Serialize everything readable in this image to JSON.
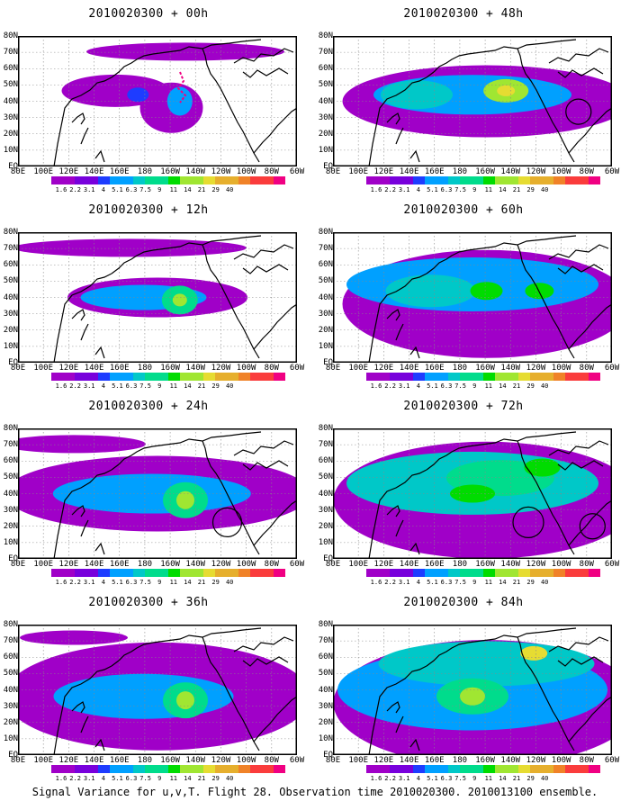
{
  "panels": [
    {
      "title": "2010020300 + 00h"
    },
    {
      "title": "2010020300 + 48h"
    },
    {
      "title": "2010020300 + 12h"
    },
    {
      "title": "2010020300 + 60h"
    },
    {
      "title": "2010020300 + 24h"
    },
    {
      "title": "2010020300 + 72h"
    },
    {
      "title": "2010020300 + 36h"
    },
    {
      "title": "2010020300 + 84h"
    }
  ],
  "lat_labels": [
    "80N",
    "70N",
    "60N",
    "50N",
    "40N",
    "30N",
    "20N",
    "10N",
    "EQ"
  ],
  "lon_labels": [
    "80E",
    "100E",
    "120E",
    "140E",
    "160E",
    "180",
    "160W",
    "140W",
    "120W",
    "100W",
    "80W",
    "60W"
  ],
  "colorbar": {
    "labels": [
      "1.6",
      "2.2",
      "3.1",
      "4",
      "5.1",
      "6.3",
      "7.5",
      "9",
      "11",
      "14",
      "21",
      "29",
      "40"
    ],
    "colors": [
      "#a000c8",
      "#7800dc",
      "#1e3cff",
      "#00a0ff",
      "#00c8c8",
      "#00dc8c",
      "#00dc00",
      "#a0e632",
      "#e6dc32",
      "#e6af2d",
      "#f08228",
      "#fa3c3c",
      "#f00082"
    ]
  },
  "caption": "Signal Variance for u,v,T. Flight 28. Observation time 2010020300. 2010013100 ensemble."
}
